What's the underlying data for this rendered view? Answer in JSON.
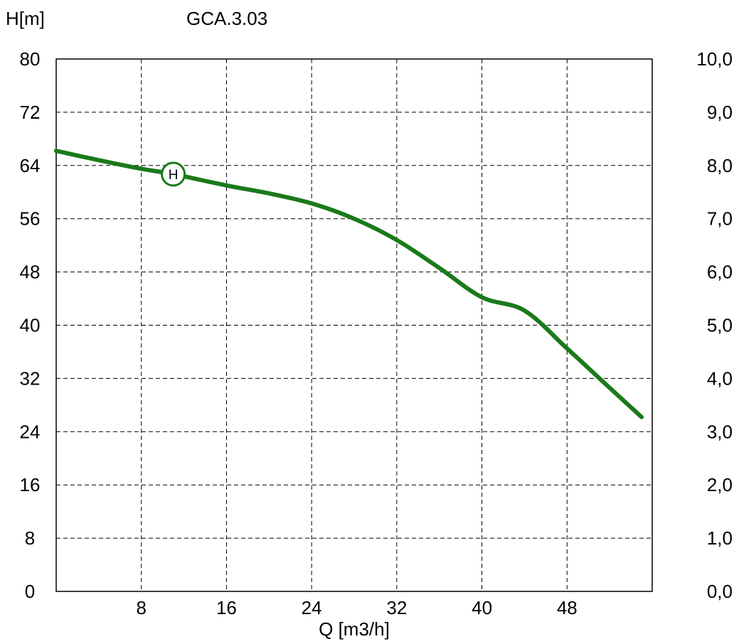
{
  "chart_data": {
    "type": "line",
    "title": "GCA.3.03",
    "ylabel": "H[m]",
    "xlabel": "Q [m3/h]",
    "xlim": [
      0,
      56
    ],
    "ylim": [
      0,
      80
    ],
    "y2lim": [
      0,
      10
    ],
    "grid": true,
    "x_ticks": [
      "8",
      "16",
      "24",
      "32",
      "40",
      "48"
    ],
    "x_tick_values": [
      8,
      16,
      24,
      32,
      40,
      48
    ],
    "y_ticks": [
      "0",
      "8",
      "16",
      "24",
      "32",
      "40",
      "48",
      "56",
      "64",
      "72",
      "80"
    ],
    "y_tick_values": [
      0,
      8,
      16,
      24,
      32,
      40,
      48,
      56,
      64,
      72,
      80
    ],
    "y2_ticks": [
      "0,0",
      "1,0",
      "2,0",
      "3,0",
      "4,0",
      "5,0",
      "6,0",
      "7,0",
      "8,0",
      "9,0",
      "10,0"
    ],
    "y2_tick_values": [
      0,
      1,
      2,
      3,
      4,
      5,
      6,
      7,
      8,
      9,
      10
    ],
    "series": [
      {
        "name": "H",
        "color": "#1a7a1a",
        "x": [
          0,
          4,
          8,
          11,
          16,
          20,
          24,
          28,
          32,
          36,
          40,
          44,
          48,
          52,
          55
        ],
        "y": [
          66.2,
          64.8,
          63.5,
          62.7,
          61,
          59.8,
          58.3,
          56,
          52.8,
          48.6,
          44.2,
          42.2,
          36.5,
          30.6,
          26.2
        ]
      }
    ],
    "curve_marker": {
      "label": "H",
      "x": 11,
      "y": 62.7
    }
  }
}
